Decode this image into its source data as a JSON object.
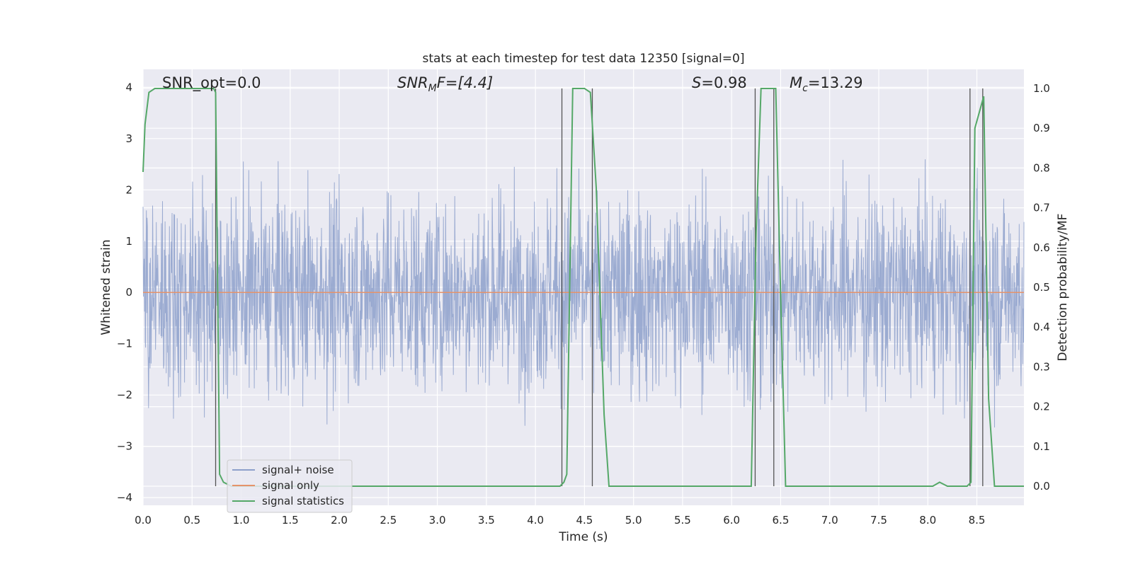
{
  "chart_data": {
    "type": "line",
    "title": "stats at each timestep for test data 12350 [signal=0]",
    "xlabel": "Time (s)",
    "ylabel": "Whitened strain",
    "y2label": "Detection probability/MF",
    "xlim": [
      0.0,
      8.98
    ],
    "ylim": [
      -4.15,
      4.35
    ],
    "y2lim": [
      -0.048,
      1.048
    ],
    "xticks": [
      "0.0",
      "0.5",
      "1.0",
      "1.5",
      "2.0",
      "2.5",
      "3.0",
      "3.5",
      "4.0",
      "4.5",
      "5.0",
      "5.5",
      "6.0",
      "6.5",
      "7.0",
      "7.5",
      "8.0",
      "8.5"
    ],
    "yticks": [
      "4",
      "3",
      "2",
      "1",
      "0",
      "−1",
      "−2",
      "−3",
      "−4"
    ],
    "y2ticks": [
      "1.0",
      "0.9",
      "0.8",
      "0.7",
      "0.6",
      "0.5",
      "0.4",
      "0.3",
      "0.2",
      "0.1",
      "0.0"
    ],
    "grid": true,
    "legend_position": "lower-left",
    "annotations": {
      "snr_opt": "SNR_opt=0.0",
      "snr_mf_base": "SNR",
      "snr_mf_sub": "M",
      "snr_mf_rest": "F=[4.4]",
      "s_var": "S",
      "s_rest": "=0.98",
      "mc_var": "M",
      "mc_sub": "c",
      "mc_rest": "=13.29"
    },
    "series": [
      {
        "name": "signal+ noise",
        "color": "#8da0cb",
        "axis": "left",
        "description_values": "whitened strain noise, approx. Gaussian, amplitude mostly within [-3.5, 3.7]"
      },
      {
        "name": "signal only",
        "color": "#e5936b",
        "axis": "left",
        "x": [
          0.0,
          8.98
        ],
        "y": [
          0.0,
          0.0
        ]
      },
      {
        "name": "signal statistics",
        "color": "#55a868",
        "axis": "right",
        "x": [
          0.0,
          0.02,
          0.06,
          0.12,
          0.3,
          0.5,
          0.72,
          0.74,
          0.78,
          0.82,
          0.9,
          1.0,
          1.2,
          1.4,
          1.6,
          2.0,
          2.5,
          3.0,
          3.5,
          4.0,
          4.2,
          4.25,
          4.29,
          4.32,
          4.38,
          4.5,
          4.56,
          4.62,
          4.7,
          4.75,
          5.0,
          5.5,
          6.0,
          6.2,
          6.25,
          6.3,
          6.35,
          6.4,
          6.45,
          6.5,
          6.55,
          6.6,
          7.0,
          7.5,
          8.0,
          8.05,
          8.12,
          8.2,
          8.3,
          8.4,
          8.44,
          8.48,
          8.57,
          8.62,
          8.68,
          8.75,
          8.98
        ],
        "y": [
          0.79,
          0.91,
          0.99,
          1.0,
          1.0,
          1.0,
          1.0,
          0.99,
          0.03,
          0.01,
          0.0,
          0.0,
          0.0,
          0.0,
          0.0,
          0.0,
          0.0,
          0.0,
          0.0,
          0.0,
          0.0,
          0.0,
          0.01,
          0.03,
          1.0,
          1.0,
          0.99,
          0.75,
          0.18,
          0.0,
          0.0,
          0.0,
          0.0,
          0.0,
          0.64,
          1.0,
          1.0,
          1.0,
          1.0,
          0.48,
          0.0,
          0.0,
          0.0,
          0.0,
          0.0,
          0.0,
          0.01,
          0.0,
          0.0,
          0.0,
          0.01,
          0.9,
          0.98,
          0.22,
          0.0,
          0.0,
          0.0
        ]
      }
    ],
    "vertical_markers_x": [
      0.74,
      4.27,
      4.58,
      6.24,
      6.43,
      8.43,
      8.56
    ]
  },
  "legend": {
    "items": [
      {
        "label": "signal+ noise",
        "color": "#8da0cb"
      },
      {
        "label": "signal only",
        "color": "#e5936b"
      },
      {
        "label": "signal statistics",
        "color": "#55a868"
      }
    ]
  }
}
